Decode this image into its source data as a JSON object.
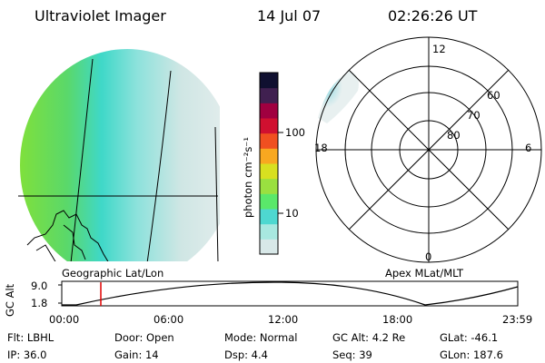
{
  "header": {
    "instrument": "Ultraviolet Imager",
    "date": "14 Jul 07",
    "time": "02:26:26 UT"
  },
  "colorbar": {
    "unit_label": "photon cm⁻²s⁻¹",
    "ticks": [
      "100",
      "10"
    ],
    "colors": [
      "#d8e8e8",
      "#a8e8e0",
      "#4ed8d0",
      "#5ae86a",
      "#9ae040",
      "#d8e020",
      "#f8a820",
      "#f05020",
      "#d01030",
      "#a00040",
      "#402050",
      "#101030"
    ]
  },
  "map_label": "Geographic Lat/Lon",
  "polar": {
    "label": "Apex MLat/MLT",
    "mlt": {
      "top": "12",
      "left": "18",
      "right": "6",
      "bottom": "0"
    },
    "lat": [
      "60",
      "70",
      "80"
    ]
  },
  "altitude_plot": {
    "ylabel": "GC Alt",
    "yticks": [
      "9.0",
      "1.8"
    ],
    "xticks": [
      "00:00",
      "06:00",
      "12:00",
      "18:00",
      "23:59"
    ],
    "marker_color": "#e00000"
  },
  "footer": {
    "flt": "Flt: LBHL",
    "ip": "IP: 36.0",
    "door": "Door: Open",
    "gain": "Gain: 14",
    "mode": "Mode: Normal",
    "dsp": "Dsp:     4.4",
    "gcalt": "GC Alt: 4.2 Re",
    "seq": "Seq: 39",
    "glat": "GLat: -46.1",
    "glon": "GLon: 187.6"
  }
}
